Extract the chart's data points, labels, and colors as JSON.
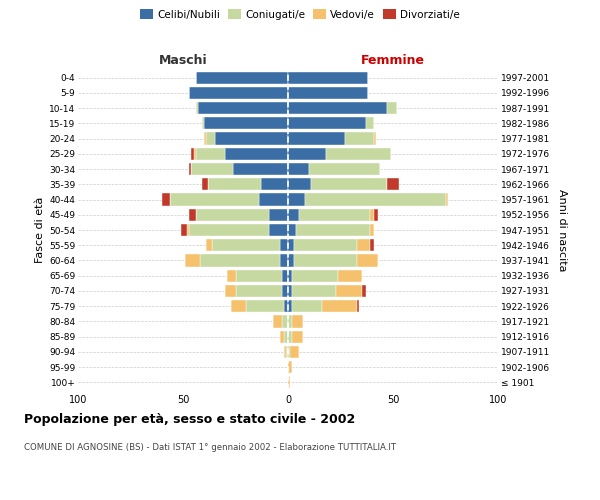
{
  "age_groups": [
    "100+",
    "95-99",
    "90-94",
    "85-89",
    "80-84",
    "75-79",
    "70-74",
    "65-69",
    "60-64",
    "55-59",
    "50-54",
    "45-49",
    "40-44",
    "35-39",
    "30-34",
    "25-29",
    "20-24",
    "15-19",
    "10-14",
    "5-9",
    "0-4"
  ],
  "birth_years": [
    "≤ 1901",
    "1902-1906",
    "1907-1911",
    "1912-1916",
    "1917-1921",
    "1922-1926",
    "1927-1931",
    "1932-1936",
    "1937-1941",
    "1942-1946",
    "1947-1951",
    "1952-1956",
    "1957-1961",
    "1962-1966",
    "1967-1971",
    "1972-1976",
    "1977-1981",
    "1982-1986",
    "1987-1991",
    "1992-1996",
    "1997-2001"
  ],
  "male_celibinubili": [
    0,
    0,
    0,
    0,
    0,
    2,
    3,
    3,
    4,
    4,
    9,
    9,
    14,
    13,
    26,
    30,
    35,
    40,
    43,
    47,
    44
  ],
  "male_coniugati": [
    0,
    0,
    1,
    2,
    3,
    18,
    22,
    22,
    38,
    32,
    38,
    35,
    42,
    25,
    20,
    14,
    4,
    1,
    1,
    0,
    0
  ],
  "male_vedovi": [
    0,
    0,
    1,
    2,
    4,
    7,
    5,
    4,
    7,
    3,
    1,
    0,
    0,
    0,
    0,
    1,
    1,
    0,
    0,
    0,
    0
  ],
  "male_divorziati": [
    0,
    0,
    0,
    0,
    0,
    0,
    0,
    0,
    0,
    0,
    3,
    3,
    4,
    3,
    1,
    1,
    0,
    0,
    0,
    0,
    0
  ],
  "female_celibinubili": [
    0,
    0,
    0,
    0,
    0,
    2,
    2,
    2,
    3,
    3,
    4,
    5,
    8,
    11,
    10,
    18,
    27,
    37,
    47,
    38,
    38
  ],
  "female_coniugati": [
    0,
    0,
    1,
    2,
    2,
    14,
    21,
    22,
    30,
    30,
    35,
    34,
    67,
    36,
    34,
    31,
    14,
    4,
    5,
    0,
    0
  ],
  "female_vedovi": [
    1,
    2,
    4,
    5,
    5,
    17,
    12,
    11,
    10,
    6,
    2,
    2,
    1,
    0,
    0,
    0,
    1,
    0,
    0,
    0,
    0
  ],
  "female_divorziati": [
    0,
    0,
    0,
    0,
    0,
    1,
    2,
    0,
    0,
    2,
    0,
    2,
    0,
    6,
    0,
    0,
    0,
    0,
    0,
    0,
    0
  ],
  "colors": {
    "celibinubili": "#3a6ea5",
    "coniugati": "#c5d9a0",
    "vedovi": "#f5c16c",
    "divorziati": "#c0392b"
  },
  "title": "Popolazione per età, sesso e stato civile - 2002",
  "subtitle": "COMUNE DI AGNOSINE (BS) - Dati ISTAT 1° gennaio 2002 - Elaborazione TUTTITALIA.IT",
  "label_maschi": "Maschi",
  "label_femmine": "Femmine",
  "ylabel_left": "Fasce di età",
  "ylabel_right": "Anni di nascita",
  "legend_labels": [
    "Celibi/Nubili",
    "Coniugati/e",
    "Vedovi/e",
    "Divorziati/e"
  ],
  "xlim": 100,
  "bg_color": "#ffffff",
  "grid_color": "#cccccc",
  "maschi_color": "#333333",
  "femmine_color": "#cc0000"
}
